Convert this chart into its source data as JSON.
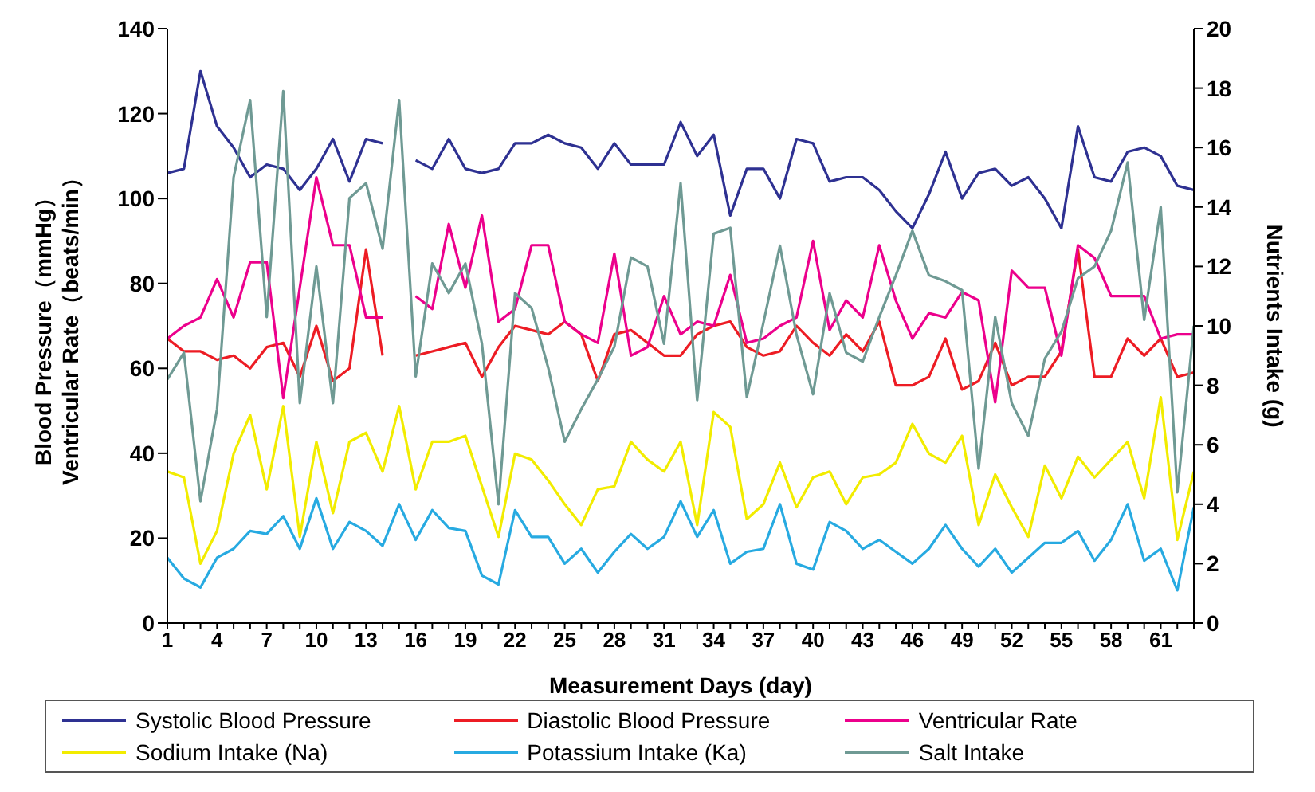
{
  "chart_data": {
    "type": "line",
    "xlabel": "Measurement Days (day)",
    "ylabel": "Blood Pressure（mmHg）\nVentricular Rate（beats/min）",
    "y2label": "Nutrients Intake (g)",
    "x": [
      1,
      2,
      3,
      4,
      5,
      6,
      7,
      8,
      9,
      10,
      11,
      12,
      13,
      14,
      15,
      16,
      17,
      18,
      19,
      20,
      21,
      22,
      23,
      24,
      25,
      26,
      27,
      28,
      29,
      30,
      31,
      32,
      33,
      34,
      35,
      36,
      37,
      38,
      39,
      40,
      41,
      42,
      43,
      44,
      45,
      46,
      47,
      48,
      49,
      50,
      51,
      52,
      53,
      54,
      55,
      56,
      57,
      58,
      59,
      60,
      61,
      62,
      63
    ],
    "xlim": [
      1,
      63
    ],
    "xticks": [
      1,
      {
        "value": 2,
        "label": null
      },
      {
        "value": 3,
        "label": null
      },
      4,
      {
        "value": 5,
        "label": null
      },
      {
        "value": 6,
        "label": null
      },
      7,
      {
        "value": 8,
        "label": null
      },
      {
        "value": 9,
        "label": null
      },
      10,
      {
        "value": 11,
        "label": null
      },
      {
        "value": 12,
        "label": null
      },
      13,
      {
        "value": 14,
        "label": null
      },
      {
        "value": 15,
        "label": null
      },
      16,
      {
        "value": 17,
        "label": null
      },
      {
        "value": 18,
        "label": null
      },
      19,
      {
        "value": 20,
        "label": null
      },
      {
        "value": 21,
        "label": null
      },
      22,
      {
        "value": 23,
        "label": null
      },
      {
        "value": 24,
        "label": null
      },
      25,
      {
        "value": 26,
        "label": null
      },
      {
        "value": 27,
        "label": null
      },
      28,
      {
        "value": 29,
        "label": null
      },
      {
        "value": 30,
        "label": null
      },
      31,
      {
        "value": 32,
        "label": null
      },
      {
        "value": 33,
        "label": null
      },
      34,
      {
        "value": 35,
        "label": null
      },
      {
        "value": 36,
        "label": null
      },
      37,
      {
        "value": 38,
        "label": null
      },
      {
        "value": 39,
        "label": null
      },
      40,
      {
        "value": 41,
        "label": null
      },
      {
        "value": 42,
        "label": null
      },
      43,
      {
        "value": 44,
        "label": null
      },
      {
        "value": 45,
        "label": null
      },
      46,
      {
        "value": 47,
        "label": null
      },
      {
        "value": 48,
        "label": null
      },
      49,
      {
        "value": 50,
        "label": null
      },
      {
        "value": 51,
        "label": null
      },
      52,
      {
        "value": 53,
        "label": null
      },
      {
        "value": 54,
        "label": null
      },
      55,
      {
        "value": 56,
        "label": null
      },
      {
        "value": 57,
        "label": null
      },
      58,
      {
        "value": 59,
        "label": null
      },
      {
        "value": 60,
        "label": null
      },
      61,
      {
        "value": 62,
        "label": null
      },
      {
        "value": 63,
        "label": null
      }
    ],
    "ylim": [
      0,
      140
    ],
    "yticks": [
      0,
      20,
      40,
      60,
      80,
      100,
      120,
      140
    ],
    "y2lim": [
      0,
      20
    ],
    "y2ticks": [
      0,
      2,
      4,
      6,
      8,
      10,
      12,
      14,
      16,
      18,
      20
    ],
    "grid": false,
    "legend": "bottom",
    "marker": "none",
    "line_style": "solid",
    "series": [
      {
        "name": "Systolic Blood Pressure",
        "color": "#2e3192",
        "values": [
          106,
          107,
          130,
          117,
          112,
          105,
          108,
          107,
          102,
          107,
          114,
          104,
          114,
          113,
          null,
          109,
          107,
          114,
          107,
          106,
          107,
          113,
          113,
          115,
          113,
          112,
          107,
          113,
          108,
          108,
          108,
          118,
          110,
          115,
          96,
          107,
          107,
          100,
          114,
          113,
          104,
          105,
          105,
          102,
          97,
          93,
          101,
          111,
          100,
          106,
          107,
          103,
          105,
          100,
          93,
          117,
          105,
          104,
          111,
          112,
          110,
          103,
          102
        ]
      },
      {
        "name": "Diastolic Blood Pressure",
        "color": "#ed1c24",
        "values": [
          67,
          64,
          64,
          62,
          63,
          60,
          65,
          66,
          58,
          70,
          57,
          60,
          88,
          63,
          null,
          63,
          64,
          65,
          66,
          58,
          65,
          70,
          69,
          68,
          71,
          68,
          57,
          68,
          69,
          66,
          63,
          63,
          68,
          70,
          71,
          65,
          63,
          64,
          70,
          66,
          63,
          68,
          64,
          71,
          56,
          56,
          58,
          67,
          55,
          57,
          66,
          56,
          58,
          58,
          64,
          88,
          58,
          58,
          67,
          63,
          67,
          58,
          59
        ]
      },
      {
        "name": "Ventricular Rate",
        "color": "#ec008c",
        "values": [
          67,
          70,
          72,
          81,
          72,
          85,
          85,
          53,
          79,
          105,
          89,
          89,
          72,
          72,
          null,
          77,
          74,
          94,
          79,
          96,
          71,
          74,
          89,
          89,
          71,
          68,
          66,
          87,
          63,
          65,
          77,
          68,
          71,
          70,
          82,
          66,
          67,
          70,
          72,
          90,
          69,
          76,
          72,
          89,
          76,
          67,
          73,
          72,
          78,
          76,
          52,
          83,
          79,
          79,
          63,
          89,
          86,
          77,
          77,
          77,
          67,
          68,
          68
        ]
      },
      {
        "name": "Sodium Intake (Na)",
        "color": "#f2ec00",
        "axis": "y2",
        "values": [
          5.1,
          4.9,
          2.0,
          3.1,
          5.7,
          7.0,
          4.5,
          7.3,
          2.9,
          6.1,
          3.7,
          6.1,
          6.4,
          5.1,
          7.3,
          4.5,
          6.1,
          6.1,
          6.3,
          4.6,
          2.9,
          5.7,
          5.5,
          4.8,
          4.0,
          3.3,
          4.5,
          4.6,
          6.1,
          5.5,
          5.1,
          6.1,
          3.3,
          7.1,
          6.6,
          3.5,
          4.0,
          5.4,
          3.9,
          4.9,
          5.1,
          4.0,
          4.9,
          5.0,
          5.4,
          6.7,
          5.7,
          5.4,
          6.3,
          3.3,
          5.0,
          3.9,
          2.9,
          5.3,
          4.2,
          5.6,
          4.9,
          5.5,
          6.1,
          4.2,
          7.6,
          2.8,
          5.1
        ]
      },
      {
        "name": "Potassium Intake (Ka)",
        "color": "#27aae1",
        "axis": "y2",
        "values": [
          2.2,
          1.5,
          1.2,
          2.2,
          2.5,
          3.1,
          3.0,
          3.6,
          2.5,
          4.2,
          2.5,
          3.4,
          3.1,
          2.6,
          4.0,
          2.8,
          3.8,
          3.2,
          3.1,
          1.6,
          1.3,
          3.8,
          2.9,
          2.9,
          2.0,
          2.5,
          1.7,
          2.4,
          3.0,
          2.5,
          2.9,
          4.1,
          2.9,
          3.8,
          2.0,
          2.4,
          2.5,
          4.0,
          2.0,
          1.8,
          3.4,
          3.1,
          2.5,
          2.8,
          2.4,
          2.0,
          2.5,
          3.3,
          2.5,
          1.9,
          2.5,
          1.7,
          2.2,
          2.7,
          2.7,
          3.1,
          2.1,
          2.8,
          4.0,
          2.1,
          2.5,
          1.1,
          3.9
        ]
      },
      {
        "name": "Salt Intake",
        "color": "#6f9a94",
        "axis": "y2",
        "values": [
          8.2,
          9.1,
          4.1,
          7.2,
          15.0,
          17.6,
          10.3,
          17.9,
          7.4,
          12.0,
          7.4,
          14.3,
          14.8,
          12.6,
          17.6,
          8.3,
          12.1,
          11.1,
          12.1,
          9.4,
          4.0,
          11.1,
          10.6,
          8.6,
          6.1,
          7.2,
          8.2,
          9.3,
          12.3,
          12.0,
          9.4,
          14.8,
          7.5,
          13.1,
          13.3,
          7.6,
          10.1,
          12.7,
          9.7,
          7.7,
          11.1,
          9.1,
          8.8,
          10.3,
          11.7,
          13.2,
          11.7,
          11.5,
          11.2,
          5.2,
          10.3,
          7.4,
          6.3,
          8.9,
          9.8,
          11.6,
          12.0,
          13.2,
          15.5,
          10.2,
          14.0,
          4.4,
          10.0
        ]
      }
    ]
  }
}
